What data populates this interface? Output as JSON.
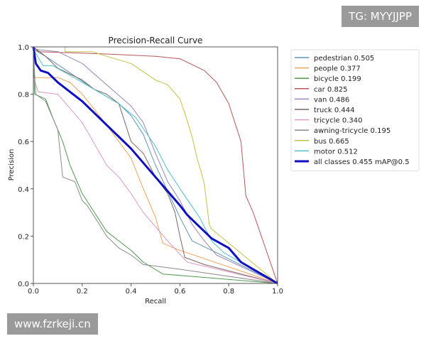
{
  "chart_data": {
    "type": "line",
    "title": "Precision-Recall Curve",
    "xlabel": "Recall",
    "ylabel": "Precision",
    "xlim": [
      0,
      1
    ],
    "ylim": [
      0,
      1
    ],
    "xticks": [
      "0.0",
      "0.2",
      "0.4",
      "0.6",
      "0.8",
      "1.0"
    ],
    "yticks": [
      "0.0",
      "0.2",
      "0.4",
      "0.6",
      "0.8",
      "1.0"
    ],
    "grid": false,
    "legend_position": "outside-right-top",
    "series": [
      {
        "name": "pedestrian 0.505",
        "color": "#5f94ba",
        "width": 1,
        "points": [
          [
            0,
            0.99
          ],
          [
            0.05,
            0.96
          ],
          [
            0.15,
            0.89
          ],
          [
            0.25,
            0.82
          ],
          [
            0.35,
            0.76
          ],
          [
            0.4,
            0.71
          ],
          [
            0.45,
            0.63
          ],
          [
            0.5,
            0.5
          ],
          [
            0.55,
            0.39
          ],
          [
            0.6,
            0.28
          ],
          [
            0.65,
            0.18
          ],
          [
            0.75,
            0.13
          ],
          [
            1,
            0
          ]
        ]
      },
      {
        "name": "people 0.377",
        "color": "#eea35a",
        "width": 1,
        "points": [
          [
            0,
            0.87
          ],
          [
            0.1,
            0.87
          ],
          [
            0.15,
            0.85
          ],
          [
            0.2,
            0.8
          ],
          [
            0.3,
            0.67
          ],
          [
            0.35,
            0.6
          ],
          [
            0.4,
            0.53
          ],
          [
            0.45,
            0.4
          ],
          [
            0.5,
            0.28
          ],
          [
            0.53,
            0.17
          ],
          [
            0.6,
            0.14
          ],
          [
            1,
            0
          ]
        ]
      },
      {
        "name": "bicycle 0.199",
        "color": "#4f9a4f",
        "width": 1,
        "points": [
          [
            0,
            0.99
          ],
          [
            0.005,
            0.8
          ],
          [
            0.05,
            0.78
          ],
          [
            0.08,
            0.7
          ],
          [
            0.12,
            0.6
          ],
          [
            0.15,
            0.5
          ],
          [
            0.2,
            0.38
          ],
          [
            0.25,
            0.3
          ],
          [
            0.3,
            0.22
          ],
          [
            0.35,
            0.18
          ],
          [
            0.4,
            0.14
          ],
          [
            0.45,
            0.09
          ],
          [
            0.53,
            0.04
          ],
          [
            1,
            0
          ]
        ]
      },
      {
        "name": "car 0.825",
        "color": "#b8555a",
        "width": 1,
        "points": [
          [
            0,
            1
          ],
          [
            0.02,
            0.98
          ],
          [
            0.3,
            0.97
          ],
          [
            0.5,
            0.96
          ],
          [
            0.6,
            0.95
          ],
          [
            0.7,
            0.9
          ],
          [
            0.75,
            0.85
          ],
          [
            0.8,
            0.76
          ],
          [
            0.85,
            0.6
          ],
          [
            0.87,
            0.37
          ],
          [
            0.9,
            0.3
          ],
          [
            1,
            0
          ]
        ]
      },
      {
        "name": "van 0.486",
        "color": "#9a85b8",
        "width": 1,
        "points": [
          [
            0,
            0.99
          ],
          [
            0.1,
            0.98
          ],
          [
            0.2,
            0.93
          ],
          [
            0.3,
            0.84
          ],
          [
            0.4,
            0.75
          ],
          [
            0.45,
            0.68
          ],
          [
            0.5,
            0.55
          ],
          [
            0.55,
            0.43
          ],
          [
            0.6,
            0.35
          ],
          [
            0.65,
            0.25
          ],
          [
            0.7,
            0.18
          ],
          [
            0.75,
            0.12
          ],
          [
            1,
            0
          ]
        ]
      },
      {
        "name": "truck 0.444",
        "color": "#7a6660",
        "width": 1,
        "points": [
          [
            0,
            1
          ],
          [
            0.05,
            0.96
          ],
          [
            0.1,
            0.91
          ],
          [
            0.2,
            0.86
          ],
          [
            0.25,
            0.82
          ],
          [
            0.3,
            0.8
          ],
          [
            0.35,
            0.76
          ],
          [
            0.4,
            0.6
          ],
          [
            0.45,
            0.55
          ],
          [
            0.5,
            0.45
          ],
          [
            0.55,
            0.38
          ],
          [
            0.58,
            0.3
          ],
          [
            0.6,
            0.2
          ],
          [
            0.62,
            0.11
          ],
          [
            0.7,
            0.08
          ],
          [
            1,
            0
          ]
        ]
      },
      {
        "name": "tricycle 0.340",
        "color": "#d99ac8",
        "width": 1,
        "points": [
          [
            0,
            0.87
          ],
          [
            0.02,
            0.81
          ],
          [
            0.1,
            0.8
          ],
          [
            0.15,
            0.74
          ],
          [
            0.2,
            0.68
          ],
          [
            0.25,
            0.59
          ],
          [
            0.3,
            0.5
          ],
          [
            0.35,
            0.45
          ],
          [
            0.4,
            0.38
          ],
          [
            0.45,
            0.3
          ],
          [
            0.5,
            0.24
          ],
          [
            0.55,
            0.18
          ],
          [
            0.63,
            0.09
          ],
          [
            1,
            0
          ]
        ]
      },
      {
        "name": "awning-tricycle 0.195",
        "color": "#8a8a8a",
        "width": 1,
        "points": [
          [
            0,
            0.98
          ],
          [
            0.01,
            0.8
          ],
          [
            0.05,
            0.77
          ],
          [
            0.1,
            0.65
          ],
          [
            0.12,
            0.45
          ],
          [
            0.17,
            0.43
          ],
          [
            0.2,
            0.35
          ],
          [
            0.22,
            0.33
          ],
          [
            0.27,
            0.25
          ],
          [
            0.3,
            0.2
          ],
          [
            0.35,
            0.15
          ],
          [
            0.4,
            0.12
          ],
          [
            0.45,
            0.08
          ],
          [
            0.6,
            0.06
          ],
          [
            1,
            0
          ]
        ]
      },
      {
        "name": "bus 0.665",
        "color": "#c2c24a",
        "width": 1,
        "points": [
          [
            0.13,
            1
          ],
          [
            0.13,
            0.98
          ],
          [
            0.24,
            0.98
          ],
          [
            0.3,
            0.96
          ],
          [
            0.4,
            0.93
          ],
          [
            0.5,
            0.86
          ],
          [
            0.55,
            0.84
          ],
          [
            0.6,
            0.78
          ],
          [
            0.62,
            0.72
          ],
          [
            0.65,
            0.62
          ],
          [
            0.67,
            0.53
          ],
          [
            0.69,
            0.46
          ],
          [
            0.7,
            0.42
          ],
          [
            0.72,
            0.25
          ],
          [
            0.73,
            0.23
          ],
          [
            1,
            0
          ]
        ]
      },
      {
        "name": "motor 0.512",
        "color": "#4fbfcc",
        "width": 1,
        "points": [
          [
            0,
            0.99
          ],
          [
            0.04,
            0.92
          ],
          [
            0.08,
            0.92
          ],
          [
            0.15,
            0.88
          ],
          [
            0.25,
            0.82
          ],
          [
            0.35,
            0.76
          ],
          [
            0.42,
            0.7
          ],
          [
            0.5,
            0.58
          ],
          [
            0.55,
            0.48
          ],
          [
            0.62,
            0.37
          ],
          [
            0.68,
            0.28
          ],
          [
            0.73,
            0.18
          ],
          [
            0.78,
            0.13
          ],
          [
            1,
            0
          ]
        ]
      },
      {
        "name": "all classes 0.455 mAP@0.5",
        "color": "#1010c0",
        "width": 3,
        "points": [
          [
            0,
            1
          ],
          [
            0.01,
            0.93
          ],
          [
            0.03,
            0.9
          ],
          [
            0.06,
            0.89
          ],
          [
            0.1,
            0.85
          ],
          [
            0.15,
            0.81
          ],
          [
            0.2,
            0.77
          ],
          [
            0.25,
            0.72
          ],
          [
            0.3,
            0.67
          ],
          [
            0.35,
            0.62
          ],
          [
            0.4,
            0.57
          ],
          [
            0.45,
            0.51
          ],
          [
            0.5,
            0.45
          ],
          [
            0.55,
            0.39
          ],
          [
            0.6,
            0.33
          ],
          [
            0.63,
            0.29
          ],
          [
            0.67,
            0.25
          ],
          [
            0.7,
            0.22
          ],
          [
            0.73,
            0.19
          ],
          [
            0.8,
            0.15
          ],
          [
            0.85,
            0.09
          ],
          [
            0.9,
            0.06
          ],
          [
            1,
            0
          ]
        ]
      }
    ]
  },
  "watermarks": {
    "top": "TG: MYYJJPP",
    "bottom": "www.fzrkeji.cn"
  }
}
